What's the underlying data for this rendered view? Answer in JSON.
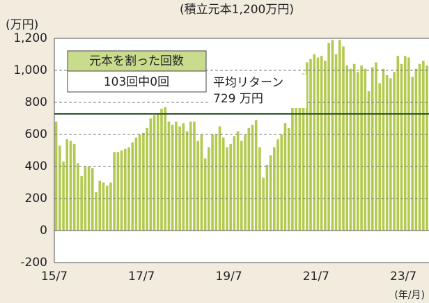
{
  "chart_data": {
    "type": "bar",
    "subtitle": "(積立元本1,200万円)",
    "y_label": "(万円)",
    "x_label": "(年/月)",
    "categories": [
      "15/7",
      null,
      null,
      null,
      null,
      null,
      null,
      null,
      null,
      null,
      null,
      null,
      null,
      null,
      null,
      null,
      null,
      null,
      null,
      null,
      null,
      null,
      null,
      null,
      "17/7",
      null,
      null,
      null,
      null,
      null,
      null,
      null,
      null,
      null,
      null,
      null,
      null,
      null,
      null,
      null,
      null,
      null,
      null,
      null,
      null,
      null,
      null,
      null,
      "19/7",
      null,
      null,
      null,
      null,
      null,
      null,
      null,
      null,
      null,
      null,
      null,
      null,
      null,
      null,
      null,
      null,
      null,
      null,
      null,
      null,
      null,
      null,
      null,
      "21/7",
      null,
      null,
      null,
      null,
      null,
      null,
      null,
      null,
      null,
      null,
      null,
      null,
      null,
      null,
      null,
      null,
      null,
      null,
      null,
      null,
      null,
      null,
      null,
      "23/7",
      null,
      null,
      null,
      null,
      null,
      null
    ],
    "values": [
      680,
      530,
      430,
      570,
      560,
      540,
      420,
      340,
      400,
      400,
      390,
      240,
      310,
      300,
      280,
      300,
      490,
      490,
      500,
      510,
      520,
      550,
      580,
      600,
      610,
      640,
      700,
      720,
      730,
      760,
      770,
      680,
      660,
      680,
      650,
      670,
      620,
      680,
      680,
      560,
      600,
      450,
      520,
      600,
      600,
      650,
      580,
      520,
      540,
      590,
      620,
      560,
      600,
      640,
      660,
      690,
      520,
      330,
      410,
      470,
      520,
      570,
      600,
      670,
      640,
      780,
      770,
      820,
      980,
      1050,
      1070,
      1100,
      1080,
      1090,
      1060,
      1170,
      1190,
      1100,
      1190,
      1150,
      1030,
      1010,
      1040,
      990,
      1030,
      1010,
      870,
      1020,
      1050,
      920,
      1010,
      970,
      950,
      990,
      1090,
      1040,
      1090,
      1080,
      960,
      1010,
      1040,
      1060,
      1030
    ],
    "color": "#b3c94f",
    "ylim": [
      -200,
      1200
    ],
    "yticks": [
      -200,
      0,
      200,
      400,
      600,
      800,
      {
        "value": 1000,
        "label": "1,000"
      },
      {
        "value": 1200,
        "label": "1,200"
      }
    ],
    "grid": true,
    "average": {
      "value": 729,
      "label": "729 万円",
      "name": "平均リターン",
      "color": "#2f5a2a"
    },
    "legend_box": {
      "title": "元本を割った回数",
      "text": "103回中0回"
    }
  }
}
